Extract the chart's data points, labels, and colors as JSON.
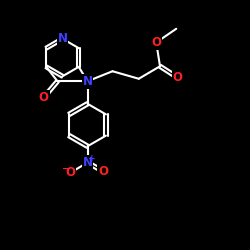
{
  "background_color": "#000000",
  "bond_color": "#ffffff",
  "bond_width": 1.5,
  "atom_colors": {
    "N": "#4040ff",
    "O": "#ff2020",
    "C": "#ffffff"
  },
  "font_size": 8.5,
  "xlim": [
    0,
    10
  ],
  "ylim": [
    0,
    10
  ]
}
